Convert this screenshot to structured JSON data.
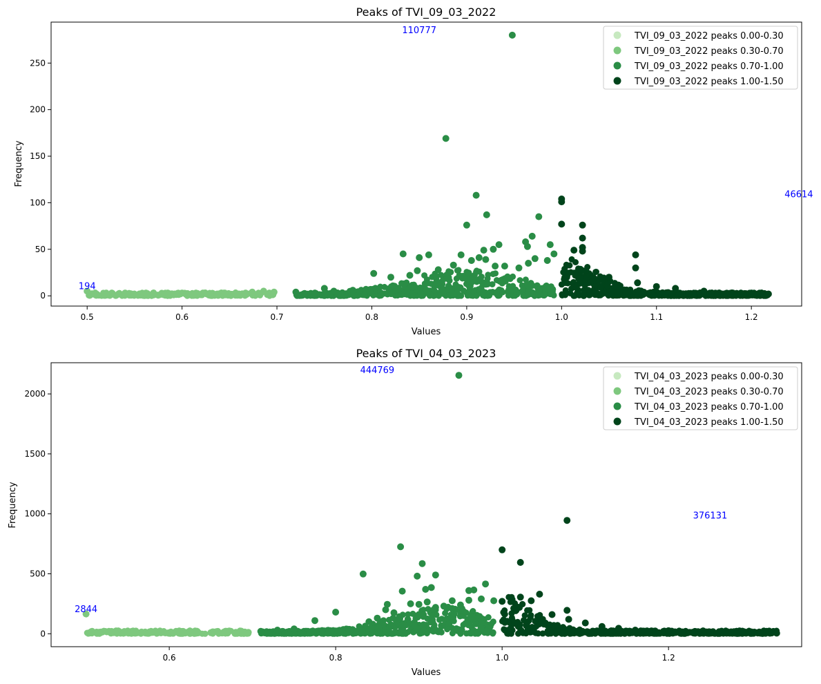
{
  "chart_data": [
    {
      "type": "scatter",
      "title": "Peaks of TVI_09_03_2022",
      "xlabel": "Values",
      "ylabel": "Frequency",
      "xlim": [
        0.462,
        1.253
      ],
      "ylim": [
        -11,
        294
      ],
      "xticks": [
        0.5,
        0.6,
        0.7,
        0.8,
        0.9,
        1.0,
        1.1,
        1.2
      ],
      "yticks": [
        0,
        50,
        100,
        150,
        200,
        250
      ],
      "legend_position": "upper-right",
      "series": [
        {
          "name": "TVI_09_03_2022 peaks 0.00-0.30",
          "color": "#c7e9c0",
          "points": []
        },
        {
          "name": "TVI_09_03_2022 peaks 0.30-0.70",
          "color": "#7ec87e",
          "points": [
            [
              0.5,
              5
            ],
            [
              0.518,
              2
            ],
            [
              0.526,
              3
            ],
            [
              0.533,
              2
            ],
            [
              0.54,
              3
            ],
            [
              0.548,
              1
            ],
            [
              0.555,
              2
            ],
            [
              0.562,
              3
            ],
            [
              0.57,
              1
            ],
            [
              0.578,
              2
            ],
            [
              0.585,
              3
            ],
            [
              0.592,
              2
            ],
            [
              0.6,
              3
            ],
            [
              0.607,
              1
            ],
            [
              0.615,
              2
            ],
            [
              0.622,
              3
            ],
            [
              0.63,
              1
            ],
            [
              0.637,
              2
            ],
            [
              0.645,
              3
            ],
            [
              0.652,
              1
            ],
            [
              0.66,
              2
            ],
            [
              0.667,
              3
            ],
            [
              0.674,
              4
            ],
            [
              0.68,
              2
            ],
            [
              0.686,
              5
            ],
            [
              0.692,
              3
            ],
            [
              0.697,
              4
            ]
          ]
        },
        {
          "name": "TVI_09_03_2022 peaks 0.70-1.00",
          "color": "#2a8d46",
          "points": [
            [
              0.948,
              280
            ],
            [
              0.878,
              169
            ],
            [
              0.91,
              108
            ],
            [
              0.921,
              87
            ],
            [
              0.9,
              76
            ],
            [
              0.976,
              85
            ],
            [
              0.969,
              64
            ],
            [
              0.962,
              58
            ],
            [
              0.964,
              53
            ],
            [
              0.988,
              55
            ],
            [
              0.934,
              55
            ],
            [
              0.928,
              50
            ],
            [
              0.918,
              49
            ],
            [
              0.92,
              39
            ],
            [
              0.913,
              41
            ],
            [
              0.905,
              38
            ],
            [
              0.894,
              44
            ],
            [
              0.86,
              44
            ],
            [
              0.85,
              41
            ],
            [
              0.833,
              45
            ],
            [
              0.848,
              27
            ],
            [
              0.84,
              22
            ],
            [
              0.82,
              20
            ],
            [
              0.802,
              24
            ],
            [
              0.985,
              38
            ],
            [
              0.94,
              32
            ],
            [
              0.93,
              32
            ],
            [
              0.965,
              35
            ],
            [
              0.992,
              45
            ],
            [
              0.972,
              40
            ],
            [
              0.955,
              30
            ],
            [
              0.886,
              33
            ],
            [
              0.87,
              28
            ],
            [
              0.9,
              18
            ],
            [
              0.78,
              6
            ],
            [
              0.76,
              5
            ],
            [
              0.75,
              8
            ],
            [
              0.72,
              4
            ],
            [
              0.74,
              3
            ]
          ]
        },
        {
          "name": "TVI_09_03_2022 peaks 1.00-1.50",
          "color": "#00441b",
          "points": [
            [
              1.0,
              104
            ],
            [
              1.0,
              101
            ],
            [
              1.0,
              77
            ],
            [
              1.022,
              76
            ],
            [
              1.022,
              62
            ],
            [
              1.022,
              52
            ],
            [
              1.022,
              48
            ],
            [
              1.013,
              49
            ],
            [
              1.078,
              44
            ],
            [
              1.078,
              30
            ],
            [
              1.05,
              20
            ],
            [
              1.08,
              14
            ],
            [
              1.1,
              10
            ],
            [
              1.12,
              8
            ],
            [
              1.15,
              5
            ],
            [
              1.18,
              3
            ],
            [
              1.2,
              3
            ],
            [
              1.218,
              2
            ]
          ]
        }
      ],
      "annotations": [
        {
          "text": "110777",
          "x": 0.85,
          "y": 282
        },
        {
          "text": "46614",
          "x": 1.25,
          "y": 106
        },
        {
          "text": "194",
          "x": 0.5,
          "y": 7
        }
      ]
    },
    {
      "type": "scatter",
      "title": "Peaks of TVI_04_03_2023",
      "xlabel": "Values",
      "ylabel": "Frequency",
      "xlim": [
        0.458,
        1.36
      ],
      "ylim": [
        -108,
        2260
      ],
      "xticks": [
        0.6,
        0.8,
        1.0,
        1.2
      ],
      "yticks": [
        0,
        500,
        1000,
        1500,
        2000
      ],
      "legend_position": "upper-right",
      "series": [
        {
          "name": "TVI_04_03_2023 peaks 0.00-0.30",
          "color": "#c7e9c0",
          "points": []
        },
        {
          "name": "TVI_04_03_2023 peaks 0.30-0.70",
          "color": "#7ec87e",
          "points": [
            [
              0.5,
              165
            ],
            [
              0.516,
              3
            ],
            [
              0.53,
              5
            ],
            [
              0.545,
              4
            ],
            [
              0.56,
              6
            ],
            [
              0.575,
              5
            ],
            [
              0.59,
              7
            ],
            [
              0.605,
              6
            ],
            [
              0.62,
              8
            ],
            [
              0.635,
              7
            ],
            [
              0.65,
              9
            ],
            [
              0.665,
              10
            ],
            [
              0.68,
              12
            ],
            [
              0.695,
              11
            ]
          ]
        },
        {
          "name": "TVI_04_03_2023 peaks 0.70-1.00",
          "color": "#2a8d46",
          "points": [
            [
              0.948,
              2155
            ],
            [
              0.878,
              725
            ],
            [
              0.904,
              585
            ],
            [
              0.92,
              490
            ],
            [
              0.898,
              480
            ],
            [
              0.833,
              498
            ],
            [
              0.908,
              370
            ],
            [
              0.915,
              385
            ],
            [
              0.88,
              355
            ],
            [
              0.96,
              360
            ],
            [
              0.966,
              365
            ],
            [
              0.98,
              415
            ],
            [
              0.99,
              275
            ],
            [
              0.94,
              275
            ],
            [
              0.862,
              245
            ],
            [
              0.89,
              250
            ],
            [
              0.87,
              175
            ],
            [
              0.9,
              160
            ],
            [
              0.85,
              130
            ],
            [
              0.84,
              100
            ],
            [
              0.8,
              180
            ],
            [
              0.775,
              110
            ],
            [
              0.93,
              230
            ],
            [
              0.95,
              240
            ],
            [
              0.9,
              245
            ],
            [
              0.96,
              280
            ],
            [
              0.975,
              290
            ],
            [
              0.91,
              265
            ],
            [
              0.94,
              210
            ],
            [
              0.92,
              220
            ],
            [
              0.86,
              200
            ],
            [
              0.75,
              40
            ],
            [
              0.73,
              30
            ],
            [
              0.71,
              20
            ]
          ]
        },
        {
          "name": "TVI_04_03_2023 peaks 1.00-1.50",
          "color": "#00441b",
          "points": [
            [
              1.078,
              945
            ],
            [
              1.0,
              700
            ],
            [
              1.022,
              595
            ],
            [
              1.045,
              330
            ],
            [
              1.022,
              305
            ],
            [
              1.012,
              285
            ],
            [
              1.0,
              270
            ],
            [
              1.035,
              275
            ],
            [
              1.078,
              195
            ],
            [
              1.06,
              160
            ],
            [
              1.08,
              120
            ],
            [
              1.1,
              90
            ],
            [
              1.12,
              60
            ],
            [
              1.14,
              45
            ],
            [
              1.16,
              30
            ],
            [
              1.2,
              25
            ],
            [
              1.25,
              15
            ],
            [
              1.3,
              10
            ],
            [
              1.33,
              5
            ]
          ]
        }
      ],
      "annotations": [
        {
          "text": "444769",
          "x": 0.85,
          "y": 2175
        },
        {
          "text": "376131",
          "x": 1.25,
          "y": 960
        },
        {
          "text": "2844",
          "x": 0.5,
          "y": 180
        }
      ]
    }
  ]
}
